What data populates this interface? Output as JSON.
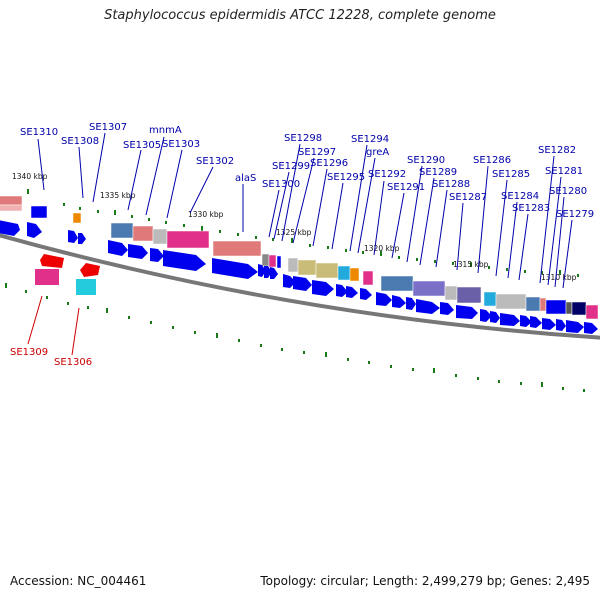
{
  "title": "Staphylococcus epidermidis ATCC 12228, complete genome",
  "footer": {
    "accession": "Accession: NC_004461",
    "summary": "Topology: circular; Length: 2,499,279 bp; Genes: 2,495"
  },
  "colors": {
    "cds": "#0000ee",
    "reverse_gene": "#ee0000",
    "backbone": "#777777",
    "tick": "#1a7a1a",
    "forward_label": "#0000aa",
    "reverse_label": "#cc0000"
  },
  "kbp_labels": [
    "1340 kbp",
    "1335 kbp",
    "1330 kbp",
    "1325 kbp",
    "1320 kbp",
    "1315 kbp",
    "1310 kbp"
  ],
  "forward_labels": [
    "SE1310",
    "SE1308",
    "SE1307",
    "SE1305",
    "mnmA",
    "SE1303",
    "SE1302",
    "alaS",
    "SE1300",
    "SE1299",
    "SE1298",
    "SE1297",
    "SE1296",
    "SE1295",
    "SE1294",
    "greA",
    "SE1292",
    "SE1291",
    "SE1290",
    "SE1289",
    "SE1288",
    "SE1287",
    "SE1286",
    "SE1285",
    "SE1284",
    "SE1283",
    "SE1282",
    "SE1281",
    "SE1280",
    "SE1279"
  ],
  "reverse_labels": [
    "SE1309",
    "SE1306"
  ]
}
